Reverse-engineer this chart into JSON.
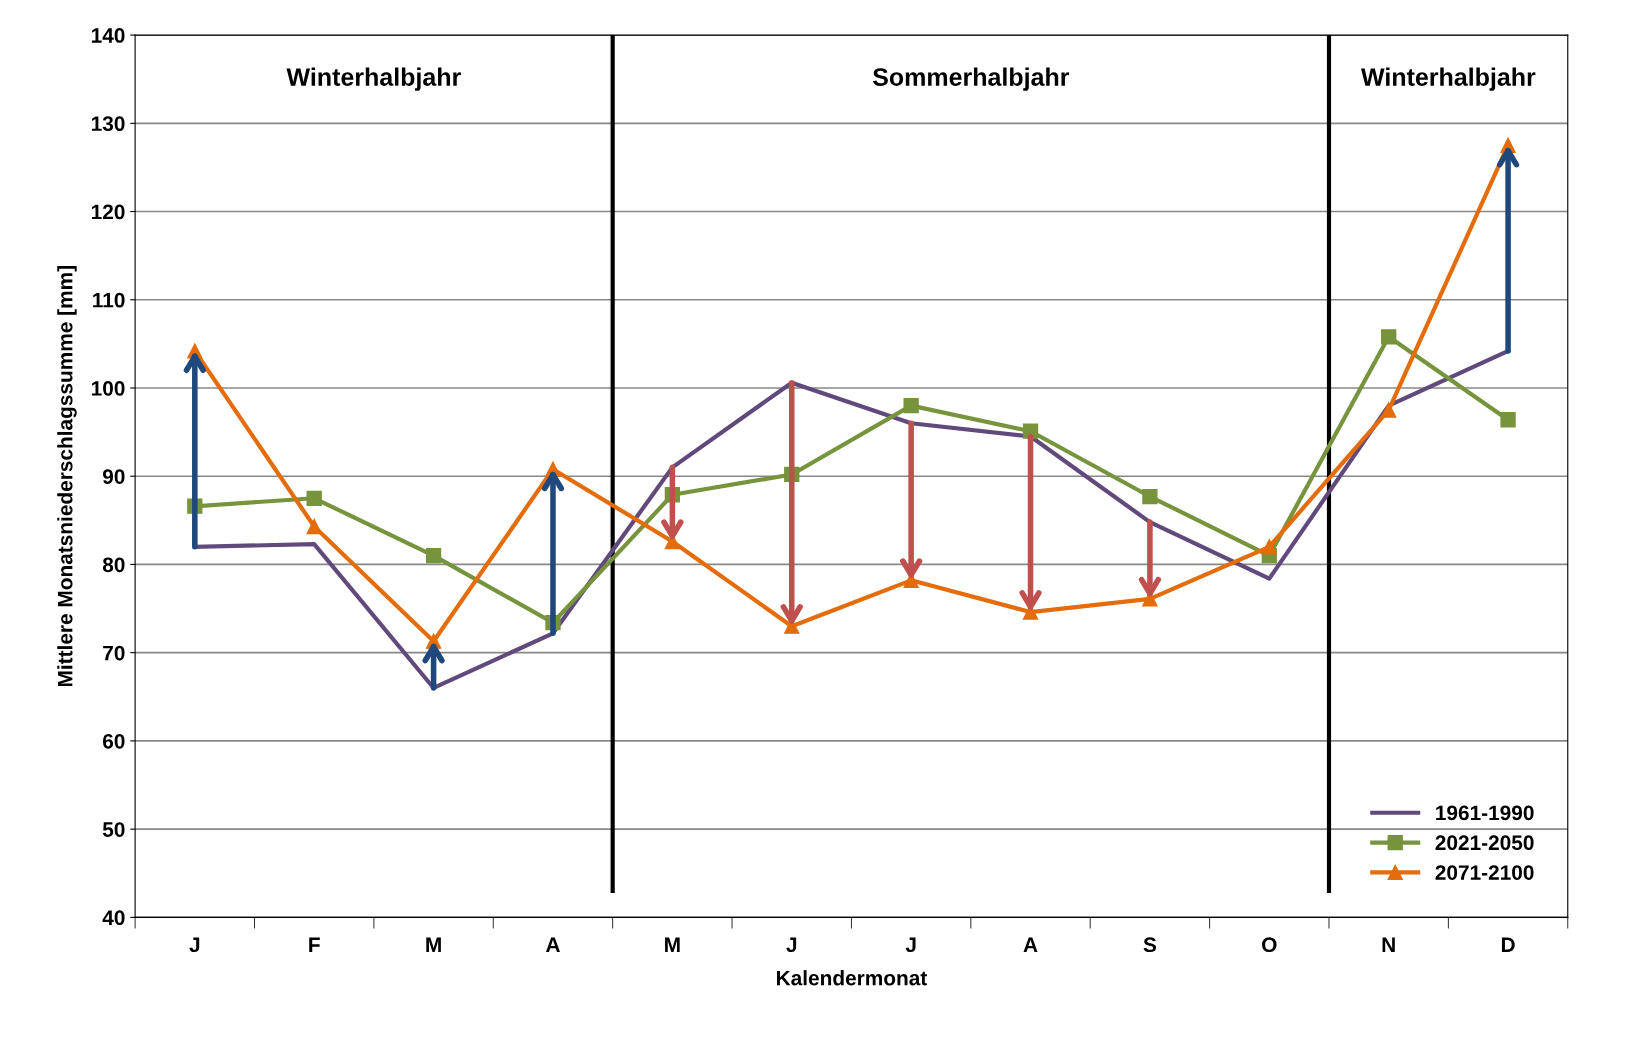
{
  "chart_data": {
    "type": "line",
    "xlabel": "Kalendermonat",
    "ylabel": "Mittlere Monatsniederschlagssumme [mm]",
    "categories": [
      "J",
      "F",
      "M",
      "A",
      "M",
      "J",
      "J",
      "A",
      "S",
      "O",
      "N",
      "D"
    ],
    "series": [
      {
        "name": "1961-1990",
        "color": "#604a7b",
        "marker": "none",
        "values": [
          82,
          82.3,
          66,
          72.2,
          91,
          100.6,
          96,
          94.5,
          84.8,
          78.4,
          98,
          104.2
        ]
      },
      {
        "name": "2021-2050",
        "color": "#77933c",
        "marker": "square",
        "values": [
          86.6,
          87.5,
          81,
          73.4,
          87.9,
          90.2,
          98,
          95.1,
          87.7,
          81,
          105.8,
          96.4
        ]
      },
      {
        "name": "2071-2100",
        "color": "#e46c0a",
        "marker": "triangle",
        "values": [
          104.2,
          84.3,
          71.3,
          90.8,
          82.6,
          73,
          78.2,
          74.6,
          76.1,
          82,
          97.5,
          127.5
        ]
      }
    ],
    "ylim": [
      40,
      140
    ],
    "yticks": [
      40,
      50,
      60,
      70,
      80,
      90,
      100,
      110,
      120,
      130,
      140
    ],
    "grid": "y",
    "legend": "bottom right",
    "line_style": "solid",
    "annotations": [
      "Winterhalbjahr",
      "Sommerhalbjahr",
      "Winterhalbjahr"
    ]
  }
}
